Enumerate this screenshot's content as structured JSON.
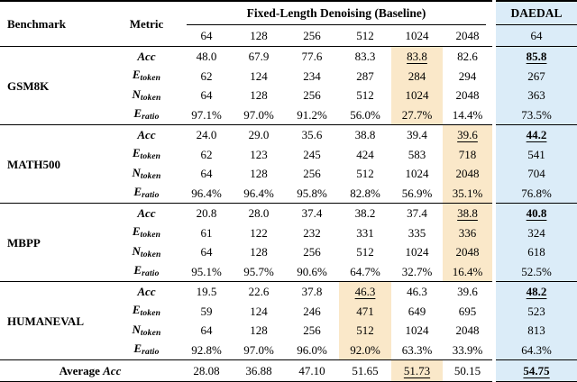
{
  "header": {
    "benchmark": "Benchmark",
    "metric": "Metric",
    "baseline_group": "Fixed-Length Denoising (Baseline)",
    "daedal_group": "DAEDAL",
    "baseline_cols": [
      "64",
      "128",
      "256",
      "512",
      "1024",
      "2048"
    ],
    "daedal_col": "64"
  },
  "metrics": [
    {
      "main": "Acc",
      "sub": ""
    },
    {
      "main": "E",
      "sub": "token"
    },
    {
      "main": "N",
      "sub": "token"
    },
    {
      "main": "E",
      "sub": "ratio"
    }
  ],
  "benchmarks": [
    {
      "name": "GSM8K",
      "best_col": 4,
      "rows": [
        [
          "48.0",
          "67.9",
          "77.6",
          "83.3",
          "83.8",
          "82.6",
          "85.8"
        ],
        [
          "62",
          "124",
          "234",
          "287",
          "284",
          "294",
          "267"
        ],
        [
          "64",
          "128",
          "256",
          "512",
          "1024",
          "2048",
          "363"
        ],
        [
          "97.1%",
          "97.0%",
          "91.2%",
          "56.0%",
          "27.7%",
          "14.4%",
          "73.5%"
        ]
      ]
    },
    {
      "name": "MATH500",
      "best_col": 5,
      "rows": [
        [
          "24.0",
          "29.0",
          "35.6",
          "38.8",
          "39.4",
          "39.6",
          "44.2"
        ],
        [
          "62",
          "123",
          "245",
          "424",
          "583",
          "718",
          "541"
        ],
        [
          "64",
          "128",
          "256",
          "512",
          "1024",
          "2048",
          "704"
        ],
        [
          "96.4%",
          "96.4%",
          "95.8%",
          "82.8%",
          "56.9%",
          "35.1%",
          "76.8%"
        ]
      ]
    },
    {
      "name": "MBPP",
      "best_col": 5,
      "rows": [
        [
          "20.8",
          "28.0",
          "37.4",
          "38.2",
          "37.4",
          "38.8",
          "40.8"
        ],
        [
          "61",
          "122",
          "232",
          "331",
          "335",
          "336",
          "324"
        ],
        [
          "64",
          "128",
          "256",
          "512",
          "1024",
          "2048",
          "618"
        ],
        [
          "95.1%",
          "95.7%",
          "90.6%",
          "64.7%",
          "32.7%",
          "16.4%",
          "52.5%"
        ]
      ]
    },
    {
      "name": "HUMANEVAL",
      "best_col": 3,
      "rows": [
        [
          "19.5",
          "22.6",
          "37.8",
          "46.3",
          "46.3",
          "39.6",
          "48.2"
        ],
        [
          "59",
          "124",
          "246",
          "471",
          "649",
          "695",
          "523"
        ],
        [
          "64",
          "128",
          "256",
          "512",
          "1024",
          "2048",
          "813"
        ],
        [
          "92.8%",
          "97.0%",
          "96.0%",
          "92.0%",
          "63.3%",
          "33.9%",
          "64.3%"
        ]
      ]
    }
  ],
  "average": {
    "label_plain": "Average ",
    "label_italic": "Acc",
    "best_col": 4,
    "values": [
      "28.08",
      "36.88",
      "47.10",
      "51.65",
      "51.73",
      "50.15",
      "54.75"
    ]
  },
  "colors": {
    "baseline_best_highlight": "#FAE8C9",
    "daedal_highlight": "#DBECF8"
  }
}
